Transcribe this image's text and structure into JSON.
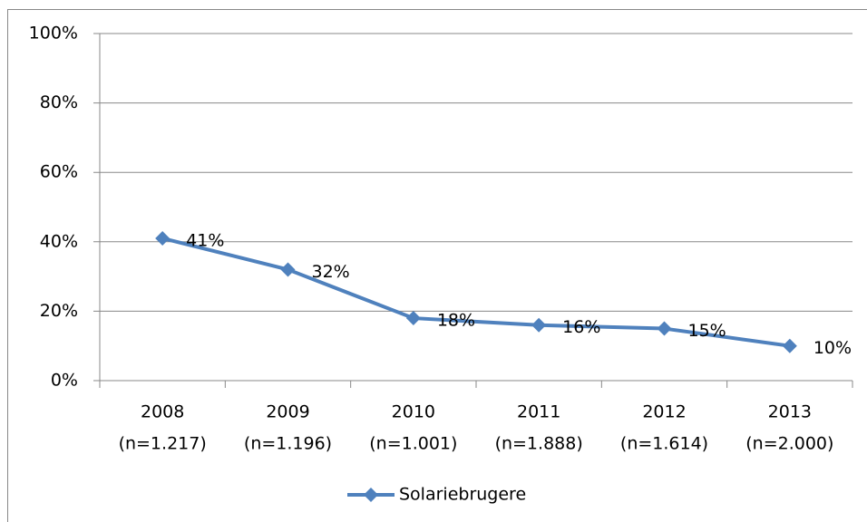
{
  "chart_data": {
    "type": "line",
    "categories": [
      [
        "2008",
        "(n=1.217)"
      ],
      [
        "2009",
        "(n=1.196)"
      ],
      [
        "2010",
        "(n=1.001)"
      ],
      [
        "2011",
        "(n=1.888)"
      ],
      [
        "2012",
        "(n=1.614)"
      ],
      [
        "2013",
        "(n=2.000)"
      ]
    ],
    "series": [
      {
        "name": "Solariebrugere",
        "color": "#4f81bd",
        "values": [
          41,
          32,
          18,
          16,
          15,
          10
        ],
        "value_labels": [
          "41%",
          "32%",
          "18%",
          "16%",
          "15%",
          "10%"
        ]
      }
    ],
    "ylim": [
      0,
      100
    ],
    "yticks": [
      {
        "value": 0,
        "label": "0%"
      },
      {
        "value": 20,
        "label": "20%"
      },
      {
        "value": 40,
        "label": "40%"
      },
      {
        "value": 60,
        "label": "60%"
      },
      {
        "value": 80,
        "label": "80%"
      },
      {
        "value": 100,
        "label": "100%"
      }
    ],
    "grid": true,
    "legend": "bottom"
  }
}
